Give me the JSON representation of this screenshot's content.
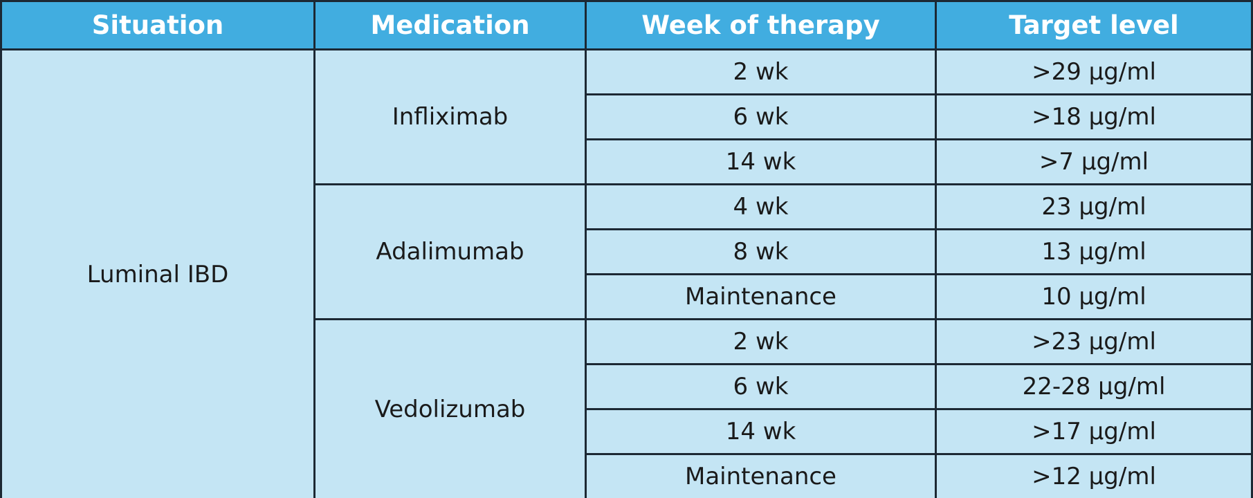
{
  "header": [
    "Situation",
    "Medication",
    "Week of therapy",
    "Target level"
  ],
  "situation": "Luminal IBD",
  "groups": [
    {
      "medication": "Infliximab",
      "rows": [
        [
          "2 wk",
          ">29 µg/ml"
        ],
        [
          "6 wk",
          ">18 µg/ml"
        ],
        [
          "14 wk",
          ">7 µg/ml"
        ]
      ]
    },
    {
      "medication": "Adalimumab",
      "rows": [
        [
          "4 wk",
          "23 µg/ml"
        ],
        [
          "8 wk",
          "13 µg/ml"
        ],
        [
          "Maintenance",
          "10 µg/ml"
        ]
      ]
    },
    {
      "medication": "Vedolizumab",
      "rows": [
        [
          "2 wk",
          ">23 µg/ml"
        ],
        [
          "6 wk",
          "22-28 µg/ml"
        ],
        [
          "14 wk",
          ">17 µg/ml"
        ],
        [
          "Maintenance",
          ">12 µg/ml"
        ]
      ]
    }
  ]
}
